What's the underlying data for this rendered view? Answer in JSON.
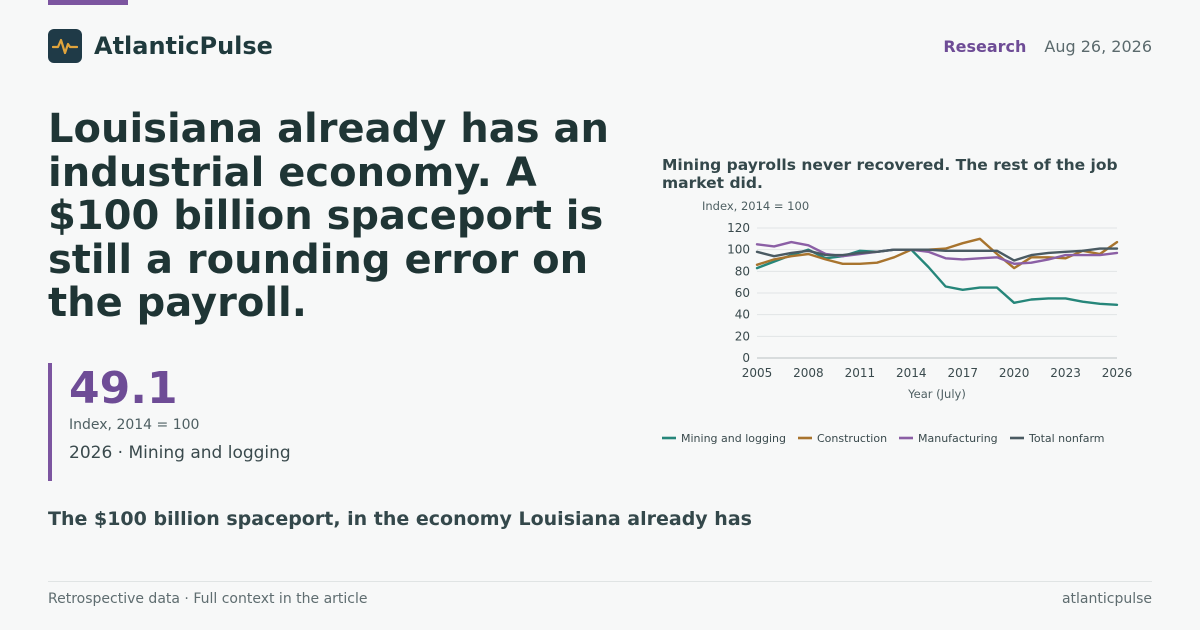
{
  "brand": {
    "name": "AtlanticPulse",
    "logo_icon": "pulse-line-icon"
  },
  "header": {
    "section": "Research",
    "date": "Aug 26, 2026"
  },
  "headline": "Louisiana already has an industrial economy. A $100 billion spaceport is still a rounding error on the payroll.",
  "stat": {
    "value": "49.1",
    "unit": "Index, 2014 = 100",
    "context": "2026 · Mining and logging"
  },
  "subhead": "The $100 billion spaceport, in the economy Louisiana already has",
  "footer": {
    "left": "Retrospective data · Full context in the article",
    "right": "atlanticpulse"
  },
  "colors": {
    "accent": "#7c55a0",
    "background": "#f7f8f8",
    "ink": "#1f3a3d"
  },
  "chart_data": {
    "type": "line",
    "title": "Mining payrolls never recovered. The rest of the job market did.",
    "ylabel": "Index, 2014 = 100",
    "xlabel": "Year (July)",
    "ylim": [
      0,
      120
    ],
    "xlim": [
      2005,
      2026
    ],
    "yticks": [
      0,
      20,
      40,
      60,
      80,
      100,
      120
    ],
    "xticks": [
      2005,
      2008,
      2011,
      2014,
      2017,
      2020,
      2023,
      2026
    ],
    "grid": true,
    "legend_position": "bottom",
    "x": [
      2005,
      2006,
      2007,
      2008,
      2009,
      2010,
      2011,
      2012,
      2013,
      2014,
      2015,
      2016,
      2017,
      2018,
      2019,
      2020,
      2021,
      2022,
      2023,
      2024,
      2025,
      2026
    ],
    "series": [
      {
        "name": "Mining and logging",
        "color": "#26867a",
        "values": [
          83,
          89,
          95,
          100,
          92,
          94,
          99,
          98,
          100,
          100,
          84,
          66,
          63,
          65,
          65,
          51,
          54,
          55,
          55,
          52,
          50,
          49.1
        ]
      },
      {
        "name": "Construction",
        "color": "#a8742e",
        "values": [
          86,
          91,
          94,
          96,
          91,
          87,
          87,
          88,
          93,
          100,
          100,
          101,
          106,
          110,
          96,
          83,
          93,
          93,
          92,
          99,
          96,
          107
        ]
      },
      {
        "name": "Manufacturing",
        "color": "#8b5fa5",
        "values": [
          105,
          103,
          107,
          104,
          96,
          94,
          96,
          98,
          100,
          100,
          98,
          92,
          91,
          92,
          93,
          87,
          88,
          91,
          95,
          95,
          95,
          97
        ]
      },
      {
        "name": "Total nonfarm",
        "color": "#4a5a62",
        "values": [
          98,
          94,
          97,
          99,
          95,
          95,
          97,
          98,
          100,
          100,
          100,
          99,
          99,
          99,
          99,
          90,
          95,
          97,
          98,
          99,
          101,
          101
        ]
      }
    ]
  }
}
